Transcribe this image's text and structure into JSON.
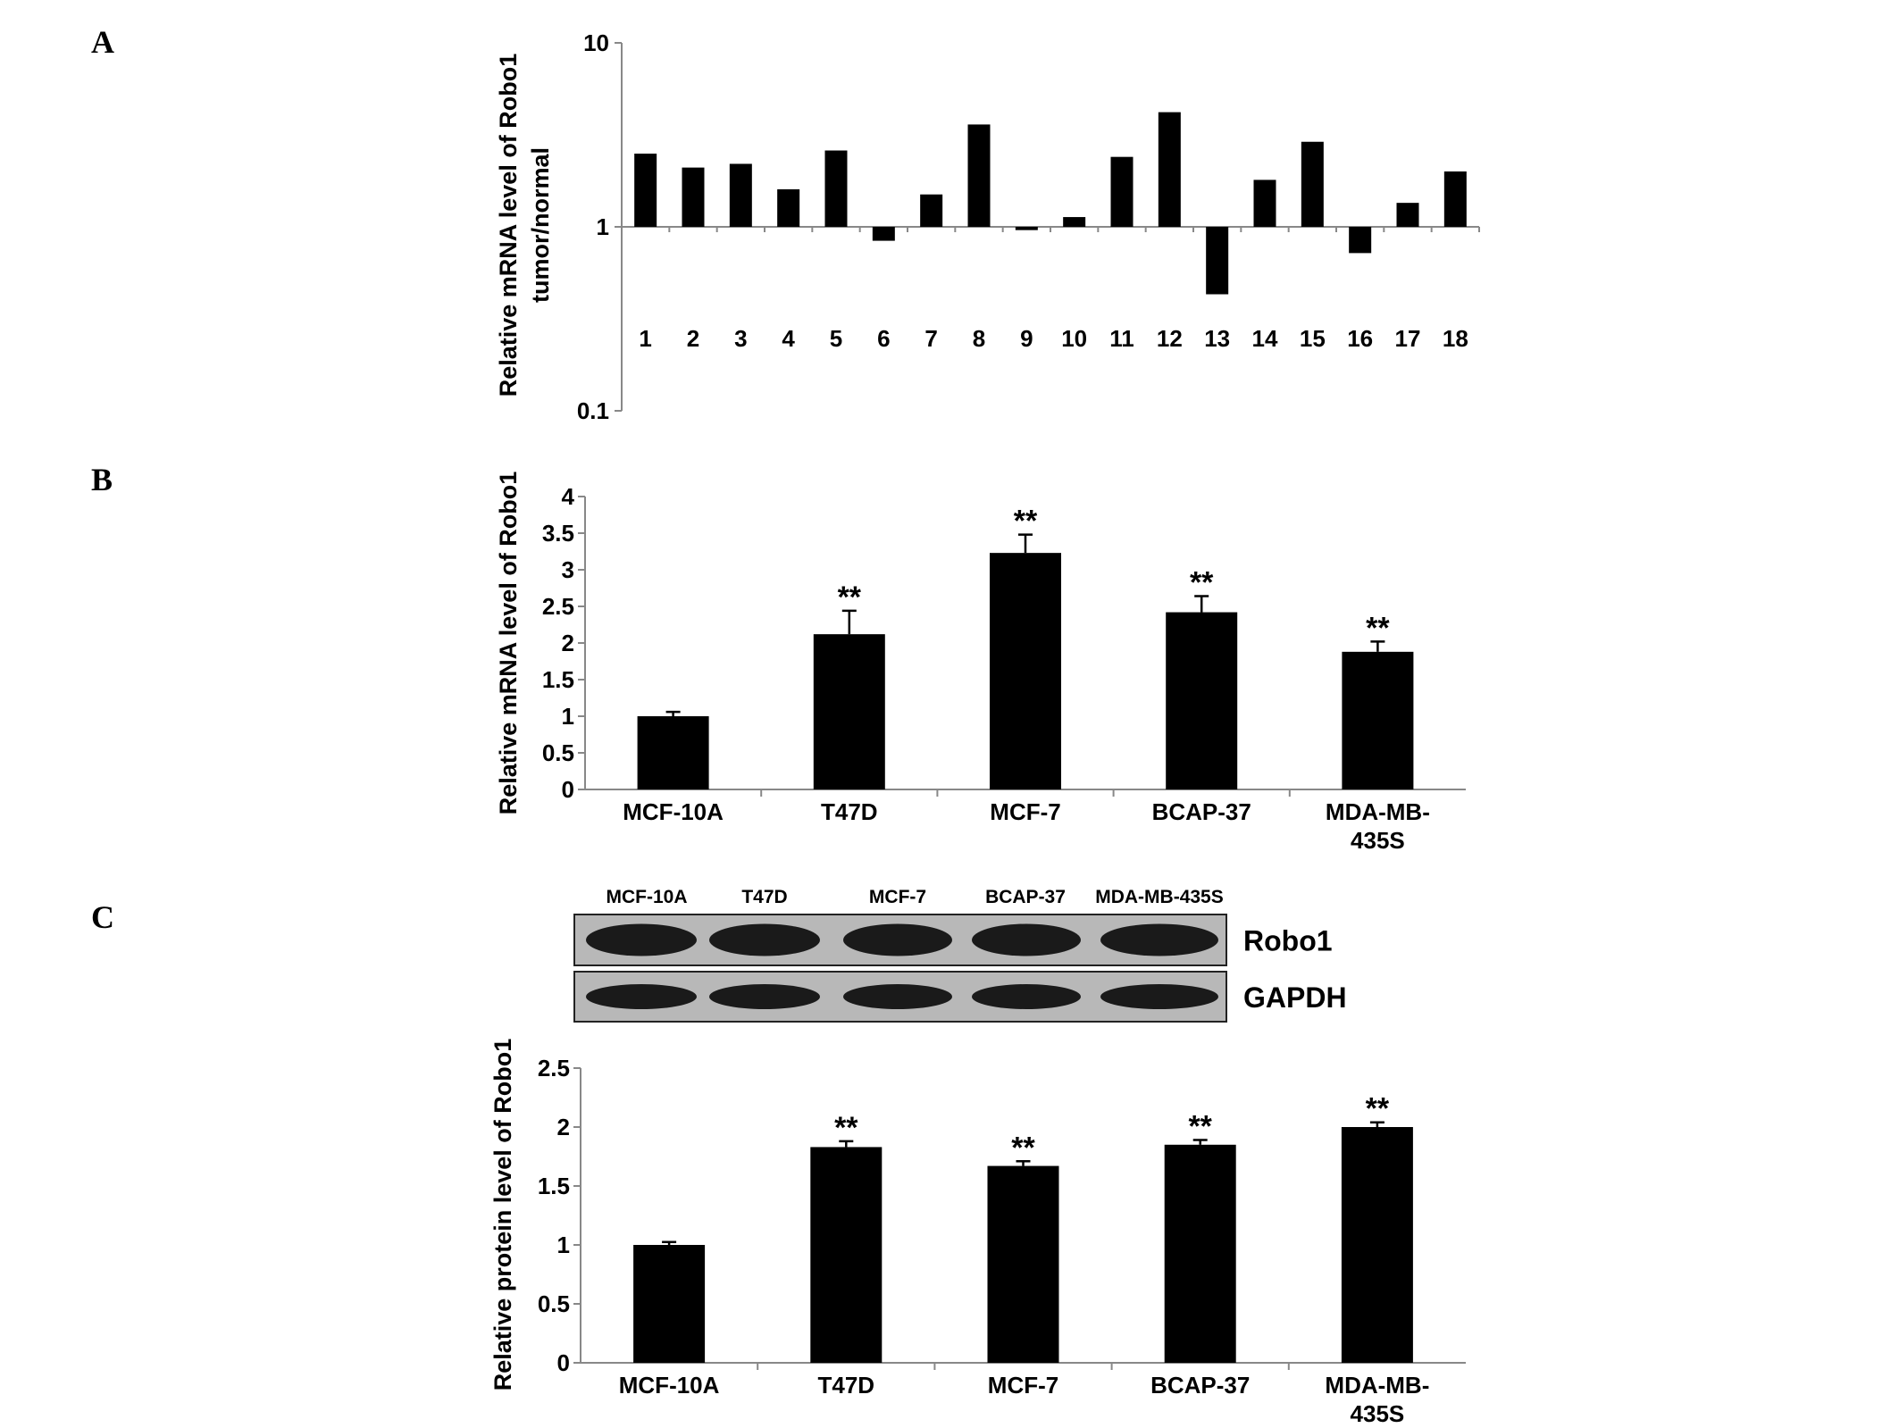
{
  "panels": {
    "a": "A",
    "b": "B",
    "c": "C"
  },
  "chart_data": [
    {
      "panel": "A",
      "type": "bar",
      "yscale": "log",
      "ylim": [
        0.1,
        10
      ],
      "ytick_labels": [
        "10",
        "1",
        "0.1"
      ],
      "ylabel": "Relative mRNA level of Robo1",
      "ylabel2": "tumor/normal",
      "categories": [
        "1",
        "2",
        "3",
        "4",
        "5",
        "6",
        "7",
        "8",
        "9",
        "10",
        "11",
        "12",
        "13",
        "14",
        "15",
        "16",
        "17",
        "18"
      ],
      "values": [
        2.5,
        2.1,
        2.2,
        1.6,
        2.6,
        0.84,
        1.5,
        3.6,
        0.96,
        1.13,
        2.4,
        4.2,
        0.43,
        1.8,
        2.9,
        0.72,
        1.35,
        2.0
      ]
    },
    {
      "panel": "B",
      "type": "bar",
      "ylim": [
        0,
        4
      ],
      "ytick_labels": [
        "0",
        "0.5",
        "1",
        "1.5",
        "2",
        "2.5",
        "3",
        "3.5",
        "4"
      ],
      "ylabel": "Relative mRNA level of Robo1",
      "categories": [
        [
          "MCF-10A"
        ],
        [
          "T47D"
        ],
        [
          "MCF-7"
        ],
        [
          "BCAP-37"
        ],
        [
          "MDA-MB-",
          "435S"
        ]
      ],
      "values": [
        1.0,
        2.12,
        3.23,
        2.42,
        1.88
      ],
      "errors": [
        0.06,
        0.32,
        0.25,
        0.22,
        0.14
      ],
      "significance": [
        "",
        "**",
        "**",
        "**",
        "**"
      ]
    },
    {
      "panel": "C",
      "type": "bar",
      "ylim": [
        0,
        2.5
      ],
      "ytick_labels": [
        "0",
        "0.5",
        "1",
        "1.5",
        "2",
        "2.5"
      ],
      "ylabel": "Relative protein level of Robo1",
      "categories": [
        [
          "MCF-10A"
        ],
        [
          "T47D"
        ],
        [
          "MCF-7"
        ],
        [
          "BCAP-37"
        ],
        [
          "MDA-MB-",
          "435S"
        ]
      ],
      "values": [
        1.0,
        1.83,
        1.67,
        1.85,
        2.0
      ],
      "errors": [
        0.025,
        0.05,
        0.04,
        0.04,
        0.04
      ],
      "significance": [
        "",
        "**",
        "**",
        "**",
        "**"
      ]
    }
  ],
  "blot": {
    "lanes": [
      "MCF-10A",
      "T47D",
      "MCF-7",
      "BCAP-37",
      "MDA-MB-435S"
    ],
    "rows": [
      "Robo1",
      "GAPDH"
    ]
  }
}
